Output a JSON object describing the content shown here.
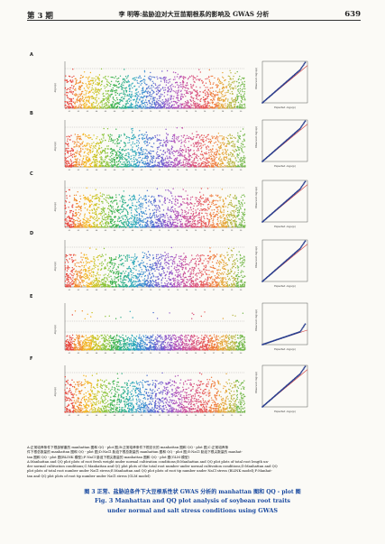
{
  "header": {
    "issue": "第 3 期",
    "title": "李 明等:盐胁迫对大豆苗期根系的影响及 GWAS 分析",
    "page": "639"
  },
  "panels": [
    {
      "letter": "A",
      "threshold": true
    },
    {
      "letter": "B",
      "threshold": true
    },
    {
      "letter": "C",
      "threshold": true
    },
    {
      "letter": "D",
      "threshold": true
    },
    {
      "letter": "E",
      "threshold": true
    },
    {
      "letter": "F",
      "threshold": true
    }
  ],
  "manhattan": {
    "ylabel": "-log₁₀(p)",
    "chromosomes": [
      "01",
      "02",
      "03",
      "04",
      "05",
      "06",
      "07",
      "08",
      "09",
      "10",
      "11",
      "12",
      "13",
      "14",
      "15",
      "16",
      "17",
      "18",
      "19",
      "20"
    ],
    "colors": [
      "#e8463c",
      "#f08a2c",
      "#f2b21c",
      "#c9c21e",
      "#8cc43c",
      "#3db24e",
      "#2fb08a",
      "#2aa7b8",
      "#3b8fd0",
      "#4a6fd0",
      "#6c5fcf",
      "#8f55c8",
      "#b04fb8",
      "#c94e9a",
      "#d9507a",
      "#e65a5a",
      "#ef7a3a",
      "#e6a63a",
      "#b8b540",
      "#74b84a"
    ]
  },
  "qq": {
    "xlabel": "Expected  -log₁₀(p)",
    "ylabel": "Observed  -log₁₀(p)",
    "point_color": "#2a3f8f",
    "line_color": "#d23a3a"
  },
  "legend": {
    "zh_lines": [
      "A:正常培养条件下根部鲜重的 manhattan 图和 QQ - plot 图;B:正常培养条件下根总长的 manhattan 图和 QQ - plot 图;C:正常培养条",
      "件下根总数量的 manhattan 图和 QQ - plot 图;D:NaCl 胁迫下根总数量的 manhattan 图和 QQ - plot 图;E:NaCl 胁迫下根尖数量的 manhat-",
      "tan 图和 QQ - plot 图(BLINK 模型);F:NaCl 胁迫下根尖数量的 manhattan 图和 QQ - plot 图(GLM 模型)"
    ],
    "en_lines": [
      "A:Manhattan and QQ plot plots of root fresh weight under normal cultivation conditions;B:Manhattan and QQ plot plots of total root length un-",
      "der normal cultivation conditions;C:Manhattan and QQ plot plots of the total root number under normal cultivation conditions;D:Manhattan and QQ",
      "plot plots of total root number under NaCl stress;E:Manhattan and QQ plot plots of root tip number under NaCl stress (BLINK model);F:Manhat-",
      "tan and QQ plot plots of root tip number under NaCl stress (GLM model)"
    ]
  },
  "caption": {
    "zh": "图 3   正常、盐胁迫条件下大豆根系性状 GWAS 分析的 manhattan 图和 QQ - plot 图",
    "en_line1": "Fig. 3    Manhattan and QQ plot analysis of soybean root traits",
    "en_line2": "under normal and salt stress conditions using GWAS"
  }
}
